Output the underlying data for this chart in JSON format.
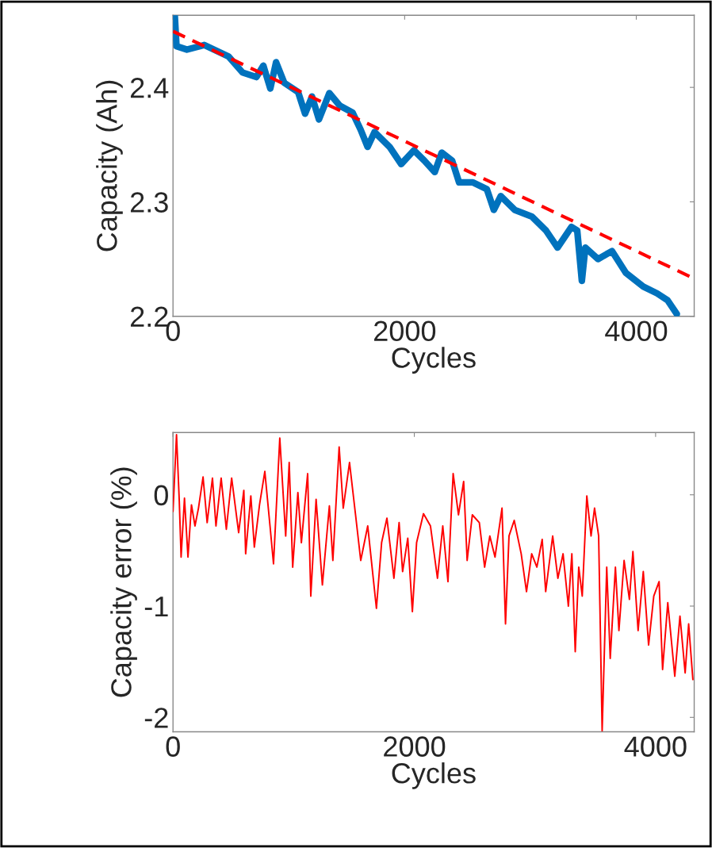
{
  "chart_data": [
    {
      "type": "line",
      "xlabel": "Cycles",
      "ylabel": "Capacity (Ah)",
      "xlim": [
        0,
        4500
      ],
      "xticks": [
        0,
        2000,
        4000
      ],
      "ylim": [
        2.2,
        2.463
      ],
      "yticks": [
        2.2,
        2.3,
        2.4
      ],
      "grid": false,
      "legend": false,
      "series": [
        {
          "color": "#0072bd",
          "line_style": "solid",
          "x": [
            15,
            30,
            120,
            270,
            480,
            600,
            720,
            780,
            840,
            890,
            960,
            1080,
            1140,
            1200,
            1260,
            1350,
            1440,
            1550,
            1620,
            1680,
            1740,
            1870,
            1970,
            2080,
            2170,
            2260,
            2320,
            2410,
            2470,
            2590,
            2710,
            2770,
            2830,
            2950,
            3100,
            3220,
            3320,
            3440,
            3490,
            3530,
            3560,
            3670,
            3790,
            3910,
            4060,
            4180,
            4270,
            4350
          ],
          "values": [
            2.463,
            2.436,
            2.433,
            2.437,
            2.427,
            2.413,
            2.409,
            2.419,
            2.399,
            2.422,
            2.404,
            2.396,
            2.377,
            2.392,
            2.372,
            2.395,
            2.384,
            2.378,
            2.363,
            2.348,
            2.361,
            2.348,
            2.333,
            2.345,
            2.336,
            2.326,
            2.343,
            2.336,
            2.317,
            2.317,
            2.311,
            2.293,
            2.305,
            2.293,
            2.287,
            2.275,
            2.26,
            2.278,
            2.275,
            2.231,
            2.26,
            2.25,
            2.257,
            2.238,
            2.226,
            2.22,
            2.214,
            2.202
          ]
        },
        {
          "color": "#ff0000",
          "line_style": "dashed",
          "x": [
            0,
            4500
          ],
          "values": [
            2.449,
            2.233
          ]
        }
      ]
    },
    {
      "type": "line",
      "xlabel": "Cycles",
      "ylabel": "Capacity error (%)",
      "xlim": [
        0,
        4320
      ],
      "xticks": [
        0,
        2000,
        4000
      ],
      "ylim": [
        -2.13,
        0.56
      ],
      "yticks": [
        {
          "value": -2,
          "label": "-2"
        },
        {
          "value": -1,
          "label": "-1"
        },
        0
      ],
      "grid": false,
      "legend": false,
      "series": [
        {
          "color": "#ff0000",
          "line_style": "solid",
          "x": [
            0,
            29,
            52,
            67,
            95,
            124,
            153,
            182,
            211,
            249,
            283,
            327,
            356,
            399,
            442,
            486,
            544,
            587,
            602,
            645,
            674,
            717,
            761,
            804,
            833,
            885,
            934,
            963,
            992,
            1035,
            1064,
            1116,
            1142,
            1186,
            1238,
            1296,
            1325,
            1377,
            1411,
            1463,
            1513,
            1556,
            1614,
            1686,
            1729,
            1773,
            1831,
            1874,
            1903,
            1946,
            1984,
            2019,
            2076,
            2134,
            2192,
            2236,
            2279,
            2322,
            2366,
            2409,
            2438,
            2481,
            2539,
            2583,
            2626,
            2669,
            2727,
            2756,
            2785,
            2828,
            2886,
            2930,
            2973,
            3016,
            3060,
            3089,
            3147,
            3190,
            3233,
            3277,
            3306,
            3334,
            3363,
            3392,
            3430,
            3465,
            3494,
            3528,
            3557,
            3595,
            3624,
            3667,
            3696,
            3739,
            3783,
            3812,
            3855,
            3898,
            3942,
            3985,
            4029,
            4058,
            4101,
            4159,
            4202,
            4245,
            4274,
            4309
          ],
          "values": [
            -0.15,
            0.54,
            -0.06,
            -0.56,
            -0.03,
            -0.56,
            -0.09,
            -0.28,
            -0.12,
            0.16,
            -0.25,
            0.15,
            -0.28,
            0.15,
            -0.31,
            0.15,
            -0.34,
            0.04,
            -0.53,
            -0.01,
            -0.47,
            -0.09,
            0.21,
            -0.28,
            -0.62,
            0.51,
            -0.37,
            0.29,
            -0.65,
            0.02,
            -0.43,
            0.19,
            -0.91,
            -0.04,
            -0.81,
            -0.1,
            -0.59,
            0.43,
            -0.12,
            0.29,
            -0.18,
            -0.59,
            -0.28,
            -1.02,
            -0.43,
            -0.21,
            -0.75,
            -0.25,
            -0.69,
            -0.39,
            -1.05,
            -0.43,
            -0.17,
            -0.28,
            -0.75,
            -0.28,
            -0.78,
            0.19,
            -0.18,
            0.12,
            -0.59,
            -0.18,
            -0.25,
            -0.65,
            -0.37,
            -0.56,
            -0.12,
            -1.16,
            -0.37,
            -0.23,
            -0.53,
            -0.87,
            -0.53,
            -0.65,
            -0.4,
            -0.87,
            -0.37,
            -0.75,
            -0.53,
            -1.0,
            -0.53,
            -1.41,
            -0.65,
            -0.91,
            -0.01,
            -0.37,
            -0.12,
            -0.37,
            -2.12,
            -0.65,
            -1.47,
            -0.65,
            -1.22,
            -0.59,
            -0.94,
            -0.51,
            -1.22,
            -0.69,
            -1.35,
            -0.91,
            -0.78,
            -1.57,
            -0.97,
            -1.63,
            -1.09,
            -1.6,
            -1.16,
            -1.66
          ]
        }
      ]
    }
  ]
}
